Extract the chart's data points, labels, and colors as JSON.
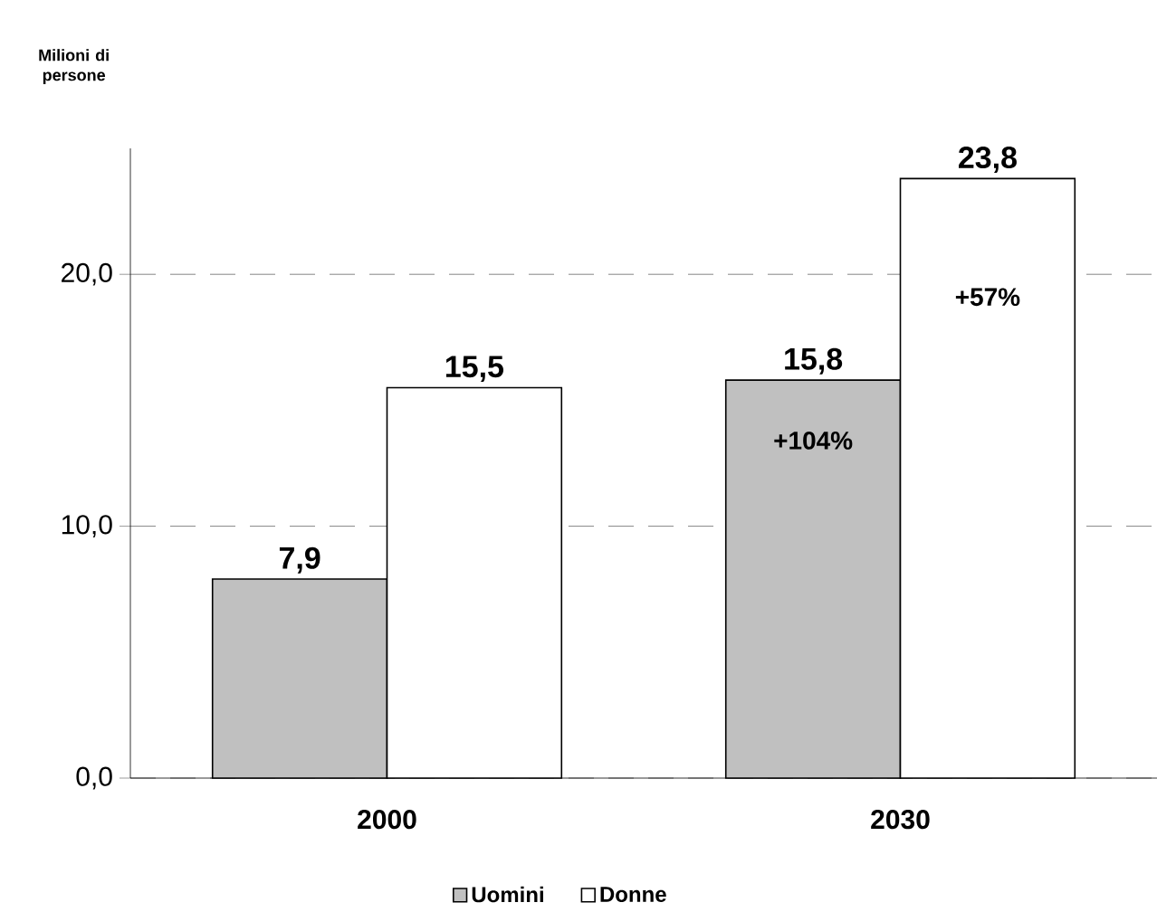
{
  "chart_data": {
    "type": "bar",
    "categories": [
      "2000",
      "2030"
    ],
    "series": [
      {
        "name": "Uomini",
        "color": "#c0c0c0",
        "values": [
          7.9,
          15.8
        ],
        "value_labels": [
          "7,9",
          "15,8"
        ]
      },
      {
        "name": "Donne",
        "color": "#ffffff",
        "values": [
          15.5,
          23.8
        ],
        "value_labels": [
          "15,5",
          "23,8"
        ]
      }
    ],
    "ylim": [
      0,
      25
    ],
    "yticks": [
      {
        "value": 0,
        "label": "0,0"
      },
      {
        "value": 10,
        "label": "10,0"
      },
      {
        "value": 20,
        "label": "20,0"
      }
    ],
    "grid": "y",
    "legend": "bottom",
    "annotations": [
      {
        "text": "+104%",
        "x": "2030",
        "y": 13.4
      },
      {
        "text": "+57%",
        "x": "2030",
        "y": 19.1
      },
      "Milioni di persone"
    ]
  }
}
